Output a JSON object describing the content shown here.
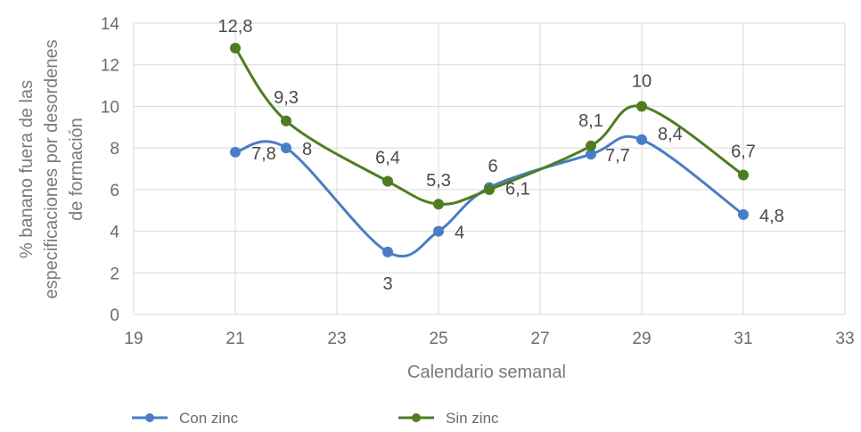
{
  "chart_data": {
    "type": "line",
    "xlabel": "Calendario semanal",
    "ylabel_lines": [
      "% banano fuera de las",
      "especificaciones por desordenes",
      "de formación"
    ],
    "xlim": [
      19,
      33
    ],
    "ylim": [
      0,
      14
    ],
    "x_ticks": [
      19,
      21,
      23,
      25,
      27,
      29,
      31,
      33
    ],
    "y_ticks": [
      0,
      2,
      4,
      6,
      8,
      10,
      12,
      14
    ],
    "grid": true,
    "legend_position": "bottom",
    "series": [
      {
        "name": "Con zinc",
        "color": "#4a7ec4",
        "x": [
          21,
          22,
          24,
          25,
          26,
          28,
          29,
          31
        ],
        "y": [
          7.8,
          8,
          3,
          4,
          6.1,
          7.7,
          8.4,
          4.8
        ],
        "labels": [
          "7,8",
          "8",
          "3",
          "4",
          "6,1",
          "7,7",
          "8,4",
          "4,8"
        ]
      },
      {
        "name": "Sin zinc",
        "color": "#4e7d20",
        "x": [
          21,
          22,
          24,
          25,
          26,
          28,
          29,
          31
        ],
        "y": [
          12.8,
          9.3,
          6.4,
          5.3,
          6,
          8.1,
          10,
          6.7
        ],
        "labels": [
          "12,8",
          "9,3",
          "6,4",
          "5,3",
          "6",
          "8,1",
          "10",
          "6,7"
        ]
      }
    ]
  }
}
